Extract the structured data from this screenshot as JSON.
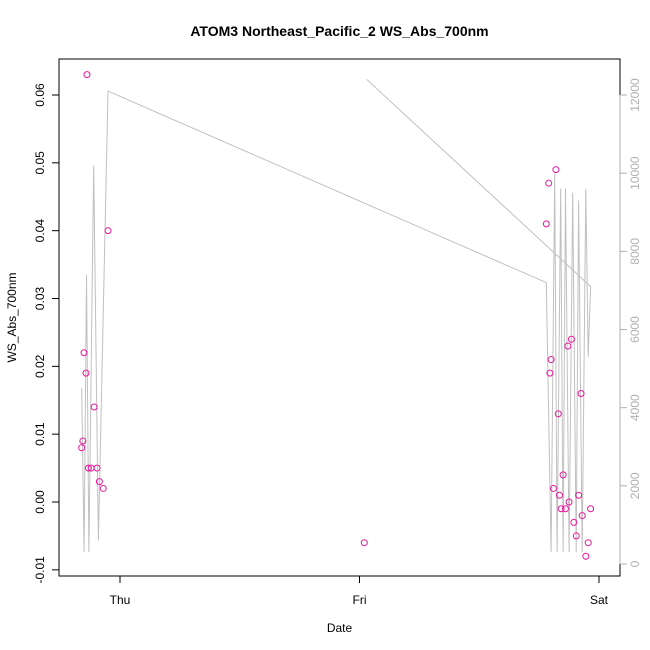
{
  "chart_data": {
    "type": "scatter",
    "title": "ATOM3 Northeast_Pacific_2 WS_Abs_700nm",
    "xlabel": "Date",
    "ylabel": "WS_Abs_700nm",
    "x_tick_labels": [
      "Thu",
      "Fri",
      "Sat"
    ],
    "x_ticks": [
      1.0,
      2.0,
      3.0
    ],
    "xlim": [
      0.8,
      3.05
    ],
    "ylim": [
      -0.01,
      0.065
    ],
    "y_ticks": [
      -0.01,
      0.0,
      0.01,
      0.02,
      0.03,
      0.04,
      0.05,
      0.06
    ],
    "y_tick_labels": [
      "-0.01",
      "0.00",
      "0.01",
      "0.02",
      "0.03",
      "0.04",
      "0.05",
      "0.06"
    ],
    "y2lim": [
      -200,
      12500
    ],
    "y2_ticks": [
      0,
      2000,
      4000,
      6000,
      8000,
      10000,
      12000
    ],
    "y2_tick_labels": [
      "0",
      "2000",
      "4000",
      "6000",
      "8000",
      "10000",
      "12000"
    ],
    "grid": false,
    "series": [
      {
        "type": "points",
        "color": "#e8179a",
        "points": [
          {
            "x": 0.84,
            "y": 0.008
          },
          {
            "x": 0.845,
            "y": 0.009
          },
          {
            "x": 0.85,
            "y": 0.022
          },
          {
            "x": 0.858,
            "y": 0.019
          },
          {
            "x": 0.862,
            "y": 0.063
          },
          {
            "x": 0.868,
            "y": 0.005
          },
          {
            "x": 0.88,
            "y": 0.005
          },
          {
            "x": 0.892,
            "y": 0.014
          },
          {
            "x": 0.904,
            "y": 0.005
          },
          {
            "x": 0.914,
            "y": 0.003
          },
          {
            "x": 0.93,
            "y": 0.002
          },
          {
            "x": 0.95,
            "y": 0.04
          },
          {
            "x": 2.02,
            "y": -0.006
          },
          {
            "x": 2.78,
            "y": 0.041
          },
          {
            "x": 2.79,
            "y": 0.047
          },
          {
            "x": 2.795,
            "y": 0.019
          },
          {
            "x": 2.8,
            "y": 0.021
          },
          {
            "x": 2.81,
            "y": 0.002
          },
          {
            "x": 2.82,
            "y": 0.049
          },
          {
            "x": 2.83,
            "y": 0.013
          },
          {
            "x": 2.835,
            "y": 0.001
          },
          {
            "x": 2.842,
            "y": -0.001
          },
          {
            "x": 2.85,
            "y": 0.004
          },
          {
            "x": 2.86,
            "y": -0.001
          },
          {
            "x": 2.87,
            "y": 0.023
          },
          {
            "x": 2.875,
            "y": 0.0
          },
          {
            "x": 2.885,
            "y": 0.024
          },
          {
            "x": 2.895,
            "y": -0.003
          },
          {
            "x": 2.905,
            "y": -0.005
          },
          {
            "x": 2.915,
            "y": 0.001
          },
          {
            "x": 2.925,
            "y": 0.016
          },
          {
            "x": 2.93,
            "y": -0.002
          },
          {
            "x": 2.945,
            "y": -0.008
          },
          {
            "x": 2.955,
            "y": -0.006
          },
          {
            "x": 2.965,
            "y": -0.001
          }
        ]
      },
      {
        "type": "line",
        "axis": "right",
        "color": "#c0c0c0",
        "points": [
          {
            "x": 0.84,
            "y": 4500
          },
          {
            "x": 0.85,
            "y": 300
          },
          {
            "x": 0.86,
            "y": 7400
          },
          {
            "x": 0.87,
            "y": 300
          },
          {
            "x": 0.89,
            "y": 10200
          },
          {
            "x": 0.91,
            "y": 600
          },
          {
            "x": 0.95,
            "y": 12100
          },
          {
            "x": 2.78,
            "y": 7200
          },
          {
            "x": 2.8,
            "y": 300
          },
          {
            "x": 2.815,
            "y": 10000
          },
          {
            "x": 2.825,
            "y": 300
          },
          {
            "x": 2.84,
            "y": 9600
          },
          {
            "x": 2.85,
            "y": 300
          },
          {
            "x": 2.86,
            "y": 9600
          },
          {
            "x": 2.875,
            "y": 300
          },
          {
            "x": 2.89,
            "y": 9500
          },
          {
            "x": 2.905,
            "y": 300
          },
          {
            "x": 2.915,
            "y": 9300
          },
          {
            "x": 2.93,
            "y": 300
          },
          {
            "x": 2.945,
            "y": 9600
          },
          {
            "x": 2.955,
            "y": 5300
          },
          {
            "x": 2.965,
            "y": 7100
          },
          {
            "x": 2.03,
            "y": 12400
          },
          {
            "x": 2.965,
            "y": 7100
          }
        ]
      }
    ]
  }
}
